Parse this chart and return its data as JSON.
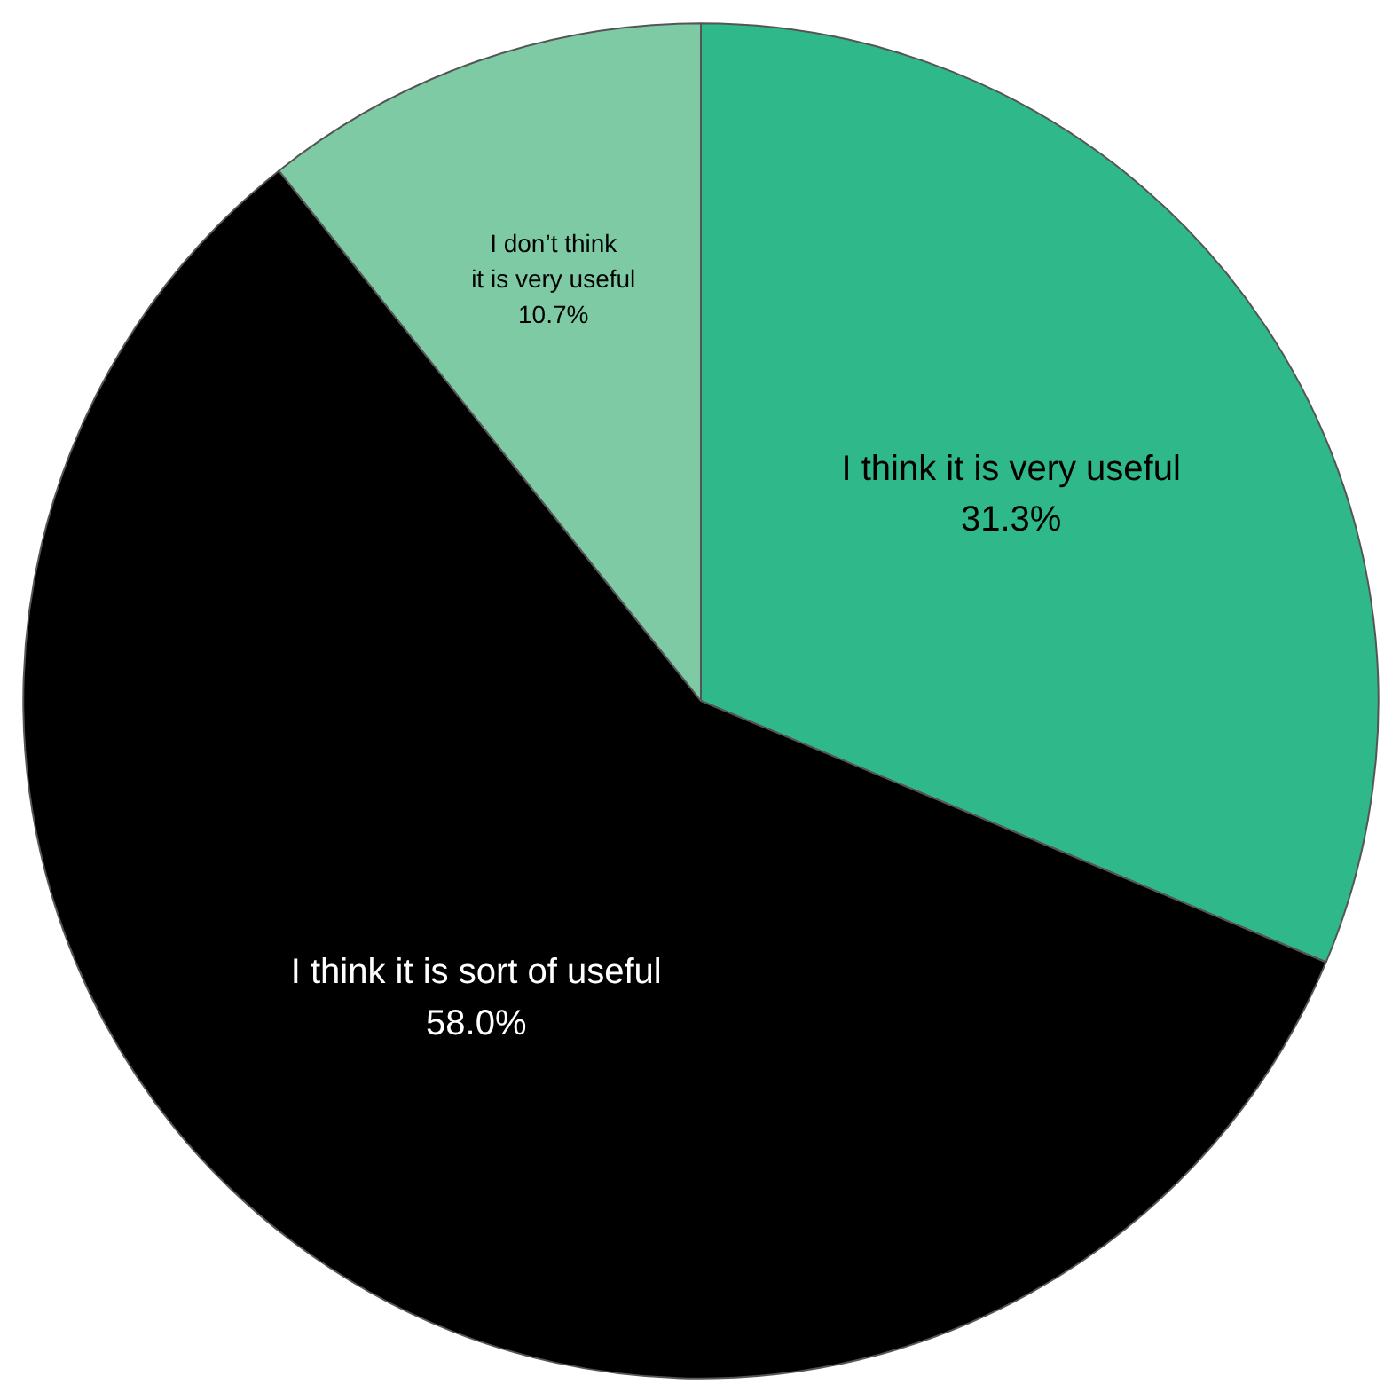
{
  "chart_data": {
    "type": "pie",
    "categories": [
      "I think it is very useful",
      "I think it is sort of useful",
      "I don’t think\nit is very useful"
    ],
    "values": [
      31.3,
      58.0,
      10.7
    ],
    "colors": [
      "#2fb98a",
      "#000000",
      "#7dcaa5"
    ],
    "value_labels": [
      "31.3%",
      "58.0%",
      "10.7%"
    ]
  }
}
